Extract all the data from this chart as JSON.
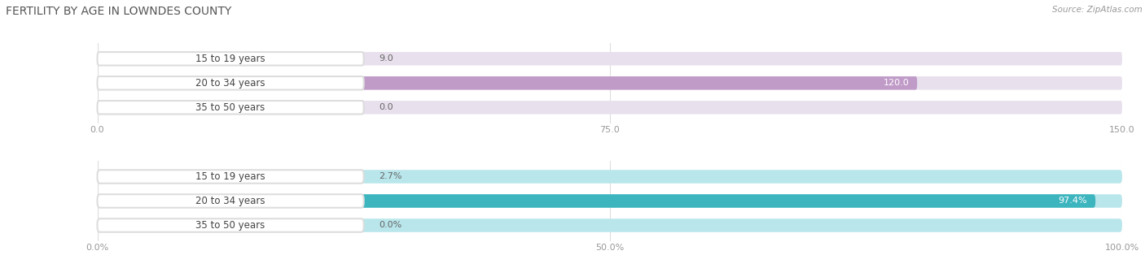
{
  "title": "FERTILITY BY AGE IN LOWNDES COUNTY",
  "source": "Source: ZipAtlas.com",
  "chart1": {
    "categories": [
      "15 to 19 years",
      "20 to 34 years",
      "35 to 50 years"
    ],
    "values": [
      9.0,
      120.0,
      0.0
    ],
    "xlim": [
      0,
      150
    ],
    "xticks": [
      0.0,
      75.0,
      150.0
    ],
    "xtick_labels": [
      "0.0",
      "75.0",
      "150.0"
    ],
    "bar_color": "#c09bc8",
    "bar_bg_color": "#e8e0ed",
    "label_color_inside": "#ffffff",
    "label_color_outside": "#888888"
  },
  "chart2": {
    "categories": [
      "15 to 19 years",
      "20 to 34 years",
      "35 to 50 years"
    ],
    "values": [
      2.7,
      97.4,
      0.0
    ],
    "xlim": [
      0,
      100
    ],
    "xticks": [
      0.0,
      50.0,
      100.0
    ],
    "xtick_labels": [
      "0.0%",
      "50.0%",
      "100.0%"
    ],
    "bar_color": "#3db5bf",
    "bar_bg_color": "#b8e6eb",
    "label_color_inside": "#ffffff",
    "label_color_outside": "#888888"
  },
  "label_texts_1": [
    "9.0",
    "120.0",
    "0.0"
  ],
  "label_texts_2": [
    "2.7%",
    "97.4%",
    "0.0%"
  ],
  "fig_bg_color": "#ffffff",
  "bar_height": 0.55,
  "title_fontsize": 10,
  "tick_fontsize": 8,
  "label_fontsize": 8,
  "cat_fontsize": 8.5
}
